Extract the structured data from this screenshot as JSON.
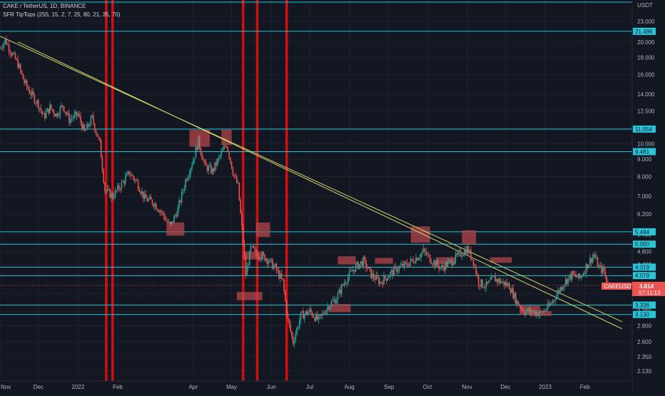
{
  "header": {
    "symbol_line": "CAKE / TetherUS, 1D, BINANCE",
    "indicator_line": "SFR TipTops (255, 15, 2, 7, 25, 80, 21, 35, 70)"
  },
  "colors": {
    "background": "#131722",
    "level_line": "#26c6da",
    "trend_line": "#d4d46a",
    "vertical_band": "#e01010",
    "zone_box": "#b2454a",
    "candle_up": "#26a69a",
    "candle_down": "#ef5350",
    "price_label": "#ef5350"
  },
  "chart_data": {
    "type": "candlestick",
    "symbol": "CAKE / TetherUS",
    "interval": "1D",
    "exchange": "BINANCE",
    "scale": "log",
    "y_axis_unit": "USDT",
    "y_ticks": [
      "23.000",
      "20.000",
      "18.000",
      "16.000",
      "14.000",
      "12.500",
      "11.000",
      "10.000",
      "9.000",
      "8.000",
      "7.000",
      "6.200",
      "5.400",
      "4.800",
      "4.400",
      "3.600",
      "3.200",
      "2.900",
      "2.600",
      "2.350",
      "2.130"
    ],
    "x_ticks": [
      "Nov",
      "Dec",
      "2022",
      "Feb",
      "Apr",
      "May",
      "Jun",
      "Jul",
      "Aug",
      "Sep",
      "Oct",
      "Nov",
      "Dec",
      "2023",
      "Feb"
    ],
    "x_range": [
      "2021-11-01",
      "2023-03-10"
    ],
    "level_labels": [
      "21.496",
      "11.054",
      "9.481",
      "5.494",
      "5.050",
      "4.319",
      "4.079",
      "3.336",
      "3.130"
    ],
    "last_price": "3.814",
    "countdown": "07:11:13",
    "ticker": "CAKEUSDT",
    "price_series": [
      [
        "2021-11-01",
        19.2
      ],
      [
        "2021-11-05",
        20.3
      ],
      [
        "2021-11-10",
        18.6
      ],
      [
        "2021-11-15",
        17.2
      ],
      [
        "2021-11-20",
        15.2
      ],
      [
        "2021-11-25",
        14.1
      ],
      [
        "2021-12-01",
        13.1
      ],
      [
        "2021-12-05",
        12.0
      ],
      [
        "2021-12-10",
        12.8
      ],
      [
        "2021-12-15",
        12.2
      ],
      [
        "2021-12-20",
        13.0
      ],
      [
        "2021-12-25",
        11.8
      ],
      [
        "2022-01-01",
        12.2
      ],
      [
        "2022-01-06",
        10.8
      ],
      [
        "2022-01-12",
        11.9
      ],
      [
        "2022-01-18",
        10.0
      ],
      [
        "2022-01-22",
        7.3
      ],
      [
        "2022-01-28",
        7.0
      ],
      [
        "2022-02-04",
        7.6
      ],
      [
        "2022-02-10",
        8.2
      ],
      [
        "2022-02-16",
        7.7
      ],
      [
        "2022-02-22",
        6.9
      ],
      [
        "2022-03-01",
        6.7
      ],
      [
        "2022-03-07",
        6.3
      ],
      [
        "2022-03-14",
        5.7
      ],
      [
        "2022-03-20",
        6.4
      ],
      [
        "2022-03-26",
        7.8
      ],
      [
        "2022-04-01",
        9.0
      ],
      [
        "2022-04-05",
        10.2
      ],
      [
        "2022-04-10",
        8.6
      ],
      [
        "2022-04-16",
        8.3
      ],
      [
        "2022-04-22",
        9.2
      ],
      [
        "2022-04-27",
        10.0
      ],
      [
        "2022-05-03",
        8.0
      ],
      [
        "2022-05-06",
        7.5
      ],
      [
        "2022-05-10",
        5.1
      ],
      [
        "2022-05-12",
        4.1
      ],
      [
        "2022-05-16",
        4.9
      ],
      [
        "2022-05-22",
        4.7
      ],
      [
        "2022-05-28",
        4.6
      ],
      [
        "2022-06-04",
        4.3
      ],
      [
        "2022-06-10",
        3.9
      ],
      [
        "2022-06-14",
        3.0
      ],
      [
        "2022-06-18",
        2.6
      ],
      [
        "2022-06-24",
        3.1
      ],
      [
        "2022-07-01",
        3.2
      ],
      [
        "2022-07-08",
        3.0
      ],
      [
        "2022-07-15",
        3.3
      ],
      [
        "2022-07-22",
        3.5
      ],
      [
        "2022-07-28",
        3.9
      ],
      [
        "2022-08-05",
        4.3
      ],
      [
        "2022-08-12",
        4.5
      ],
      [
        "2022-08-18",
        4.1
      ],
      [
        "2022-08-25",
        3.9
      ],
      [
        "2022-09-01",
        4.1
      ],
      [
        "2022-09-08",
        4.3
      ],
      [
        "2022-09-15",
        4.4
      ],
      [
        "2022-09-22",
        4.6
      ],
      [
        "2022-09-28",
        4.8
      ],
      [
        "2022-10-05",
        4.5
      ],
      [
        "2022-10-12",
        4.3
      ],
      [
        "2022-10-20",
        4.5
      ],
      [
        "2022-10-26",
        4.7
      ],
      [
        "2022-11-01",
        4.9
      ],
      [
        "2022-11-06",
        4.5
      ],
      [
        "2022-11-10",
        3.9
      ],
      [
        "2022-11-16",
        3.8
      ],
      [
        "2022-11-22",
        4.0
      ],
      [
        "2022-11-28",
        3.9
      ],
      [
        "2022-12-04",
        3.8
      ],
      [
        "2022-12-10",
        3.4
      ],
      [
        "2022-12-16",
        3.2
      ],
      [
        "2022-12-22",
        3.2
      ],
      [
        "2022-12-28",
        3.15
      ],
      [
        "2023-01-04",
        3.3
      ],
      [
        "2023-01-10",
        3.6
      ],
      [
        "2023-01-16",
        3.9
      ],
      [
        "2023-01-22",
        4.1
      ],
      [
        "2023-01-28",
        4.0
      ],
      [
        "2023-02-03",
        4.4
      ],
      [
        "2023-02-08",
        4.7
      ],
      [
        "2023-02-12",
        4.3
      ],
      [
        "2023-02-16",
        4.2
      ],
      [
        "2023-02-19",
        3.814
      ]
    ],
    "horizontal_levels": [
      21.496,
      11.054,
      9.481,
      5.494,
      5.05,
      4.319,
      4.079,
      3.336,
      3.13
    ],
    "trend_lines": [
      {
        "from": [
          "2021-11-01",
          20.8
        ],
        "to": [
          "2023-03-02",
          2.98
        ]
      },
      {
        "from": [
          "2021-11-15",
          20.0
        ],
        "to": [
          "2023-03-02",
          2.84
        ]
      }
    ],
    "vertical_bands": [
      [
        "2022-01-22",
        "2022-01-24"
      ],
      [
        "2022-01-27",
        "2022-01-29"
      ],
      [
        "2022-05-09",
        "2022-05-11"
      ],
      [
        "2022-05-20",
        "2022-05-22"
      ],
      [
        "2022-06-12",
        "2022-06-14"
      ]
    ],
    "zones": [
      {
        "from": "2022-03-11",
        "to": "2022-03-25",
        "lo": 5.35,
        "hi": 5.85
      },
      {
        "from": "2022-03-29",
        "to": "2022-04-14",
        "lo": 9.8,
        "hi": 11.0
      },
      {
        "from": "2022-04-23",
        "to": "2022-05-01",
        "lo": 9.9,
        "hi": 11.0
      },
      {
        "from": "2022-05-10",
        "to": "2022-05-26",
        "lo": 4.55,
        "hi": 4.8
      },
      {
        "from": "2022-05-05",
        "to": "2022-05-25",
        "lo": 3.45,
        "hi": 3.65
      },
      {
        "from": "2022-05-20",
        "to": "2022-05-31",
        "lo": 5.3,
        "hi": 5.85
      },
      {
        "from": "2022-07-23",
        "to": "2022-08-06",
        "lo": 4.4,
        "hi": 4.65
      },
      {
        "from": "2022-07-17",
        "to": "2022-08-02",
        "lo": 3.18,
        "hi": 3.36
      },
      {
        "from": "2022-08-21",
        "to": "2022-09-04",
        "lo": 4.42,
        "hi": 4.6
      },
      {
        "from": "2022-09-18",
        "to": "2022-10-03",
        "lo": 5.1,
        "hi": 5.7
      },
      {
        "from": "2022-10-08",
        "to": "2022-10-23",
        "lo": 4.42,
        "hi": 4.62
      },
      {
        "from": "2022-10-28",
        "to": "2022-11-08",
        "lo": 5.05,
        "hi": 5.55
      },
      {
        "from": "2022-11-19",
        "to": "2022-12-06",
        "lo": 4.45,
        "hi": 4.62
      },
      {
        "from": "2022-12-12",
        "to": "2022-12-28",
        "lo": 3.13,
        "hi": 3.32
      },
      {
        "from": "2022-12-20",
        "to": "2023-01-06",
        "lo": 3.1,
        "hi": 3.2
      }
    ]
  }
}
